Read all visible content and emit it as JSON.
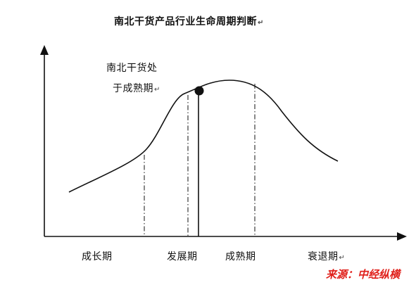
{
  "title": "南北干货产品行业生命周期判断",
  "annotation": {
    "line1": "南北干货处",
    "line2": "于成熟期"
  },
  "stages": [
    {
      "label": "成长期"
    },
    {
      "label": "发展期"
    },
    {
      "label": "成熟期"
    },
    {
      "label": "衰退期"
    }
  ],
  "source": "来源：中经纵横",
  "paragraph_mark": "↵",
  "colors": {
    "line": "#111111",
    "source_text": "#e0201b"
  },
  "icons": {
    "current_position": "filled-circle-marker",
    "axis_arrows": "triangle-arrowhead"
  }
}
